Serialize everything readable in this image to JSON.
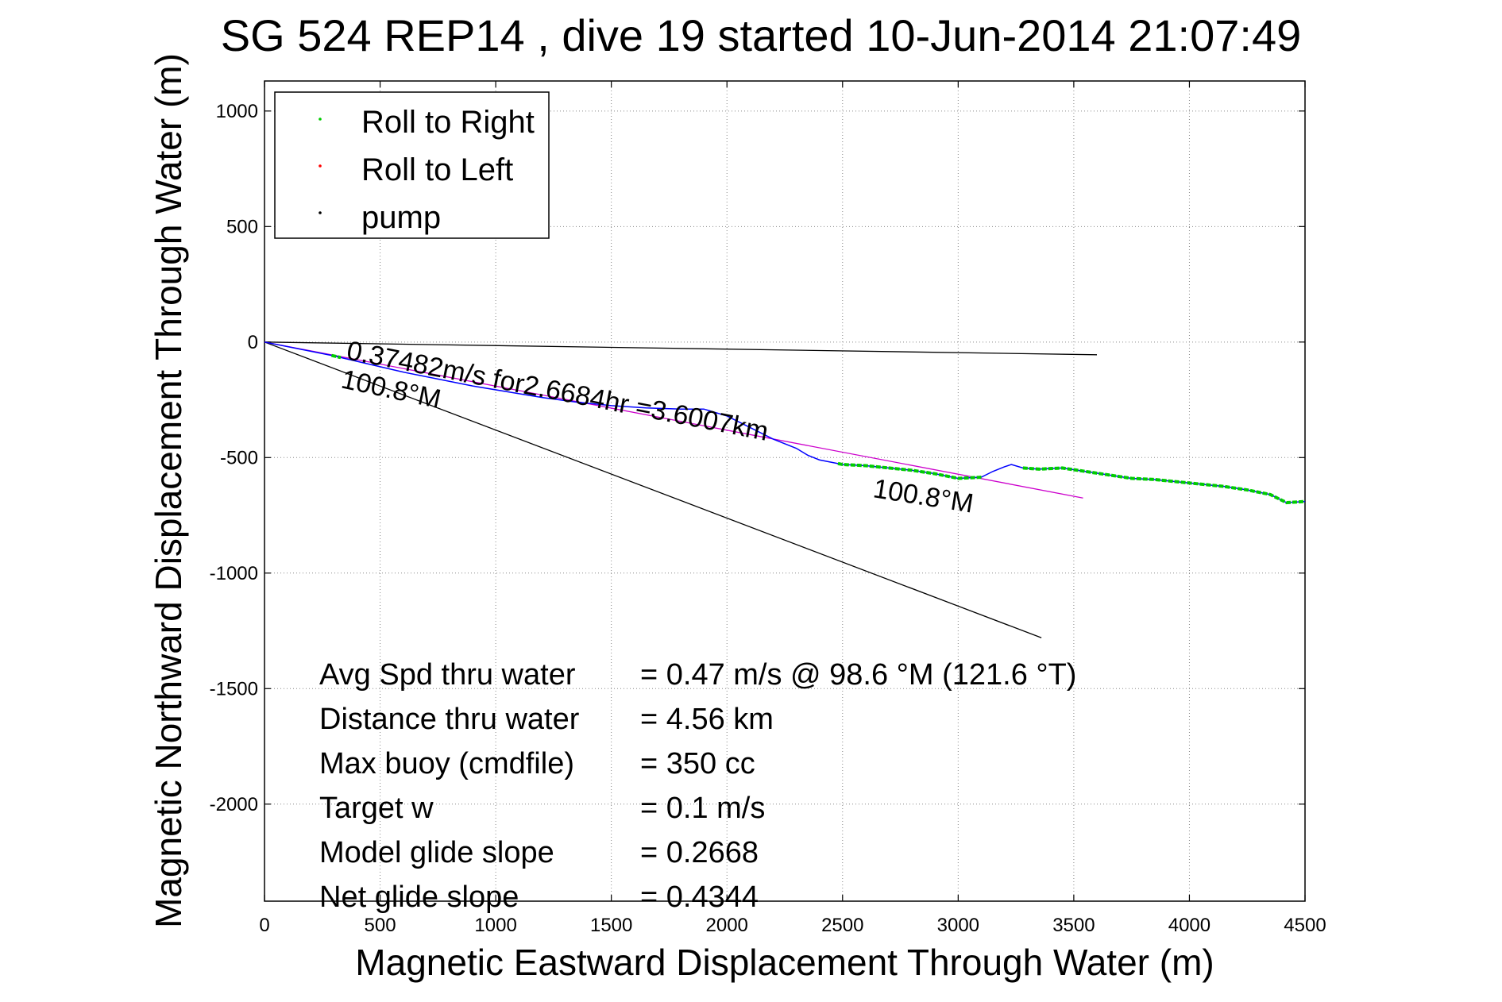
{
  "chart_data": {
    "type": "line",
    "title": "SG 524   REP14  , dive 19 started 10-Jun-2014 21:07:49",
    "xlabel": "Magnetic Eastward Displacement Through Water (m)",
    "ylabel": "Magnetic Northward Displacement Through Water (m)",
    "xlim": [
      0,
      4500
    ],
    "ylim": [
      -2420,
      1130
    ],
    "x_ticks": [
      0,
      500,
      1000,
      1500,
      2000,
      2500,
      3000,
      3500,
      4000,
      4500
    ],
    "y_ticks": [
      1000,
      500,
      0,
      -500,
      -1000,
      -1500,
      -2000
    ],
    "grid": true,
    "legend_position": "top-left",
    "legend": [
      {
        "label": "Roll to Right",
        "color": "#00cc00"
      },
      {
        "label": "Roll to Left",
        "color": "#ff0000"
      },
      {
        "label": "pump",
        "color": "#000000"
      }
    ],
    "track": {
      "color": "#0000ff",
      "x": [
        0,
        150,
        300,
        450,
        600,
        750,
        900,
        1050,
        1200,
        1350,
        1500,
        1650,
        1800,
        1900,
        2000,
        2100,
        2200,
        2300,
        2350,
        2400,
        2450,
        2500,
        2600,
        2700,
        2800,
        2900,
        3000,
        3100,
        3150,
        3200,
        3230,
        3280,
        3350,
        3450,
        3550,
        3650,
        3750,
        3850,
        3950,
        4050,
        4150,
        4250,
        4350,
        4420,
        4500
      ],
      "y": [
        0,
        -30,
        -60,
        -95,
        -130,
        -160,
        -190,
        -215,
        -240,
        -260,
        -275,
        -285,
        -290,
        -290,
        -320,
        -370,
        -420,
        -460,
        -490,
        -510,
        -520,
        -530,
        -535,
        -545,
        -555,
        -570,
        -590,
        -585,
        -560,
        -540,
        -530,
        -545,
        -550,
        -545,
        -560,
        -575,
        -590,
        -595,
        -605,
        -615,
        -625,
        -640,
        -660,
        -695,
        -690
      ]
    },
    "roll_right_segments": [
      {
        "x": [
          2480,
          3100
        ]
      },
      {
        "x": [
          3280,
          4500
        ]
      },
      {
        "x": [
          290,
          330
        ]
      }
    ],
    "reference_lines": [
      {
        "name": "current",
        "color": "#000000",
        "x": [
          0,
          3600
        ],
        "y": [
          0,
          -55
        ]
      },
      {
        "name": "heading",
        "color": "#000000",
        "x": [
          0,
          3360
        ],
        "y": [
          0,
          -1280
        ]
      },
      {
        "name": "fit",
        "color": "#cc00cc",
        "x": [
          0,
          3540
        ],
        "y": [
          0,
          -675
        ]
      }
    ],
    "annotations": {
      "speed": "0.37482m/s for2.6684hr =3.6007km",
      "heading_left": "100.8°M",
      "heading_right": "100.8°M"
    },
    "stats": [
      {
        "label": "Avg Spd thru water",
        "value": "=  0.47 m/s @  98.6 °M (121.6 °T)"
      },
      {
        "label": "Distance thru water",
        "value": "=  4.56 km"
      },
      {
        "label": "Max buoy (cmdfile)",
        "value": "= 350 cc"
      },
      {
        "label": "Target w",
        "value": "= 0.1 m/s"
      },
      {
        "label": "Model glide slope",
        "value": "= 0.2668"
      },
      {
        "label": "Net glide slope",
        "value": "= 0.4344"
      }
    ]
  }
}
